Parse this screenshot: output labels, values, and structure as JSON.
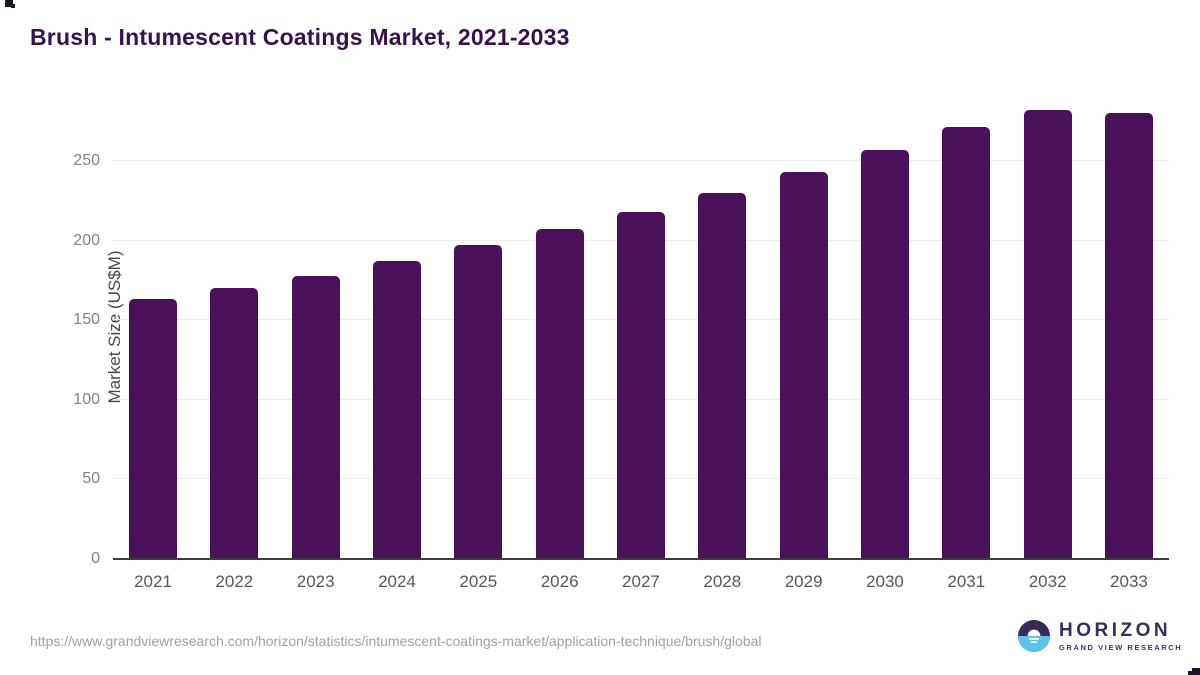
{
  "title": "Brush - Intumescent Coatings Market, 2021-2033",
  "chart_data": {
    "type": "bar",
    "categories": [
      "2021",
      "2022",
      "2023",
      "2024",
      "2025",
      "2026",
      "2027",
      "2028",
      "2029",
      "2030",
      "2031",
      "2032",
      "2033"
    ],
    "values": [
      163,
      170,
      178,
      187,
      197,
      207,
      218,
      230,
      243,
      257,
      271,
      282,
      280
    ],
    "title": "Brush - Intumescent Coatings Market, 2021-2033",
    "xlabel": "",
    "ylabel": "Market Size (US$M)",
    "ylim": [
      0,
      292
    ],
    "yticks": [
      0,
      50,
      100,
      150,
      200,
      250
    ],
    "grid": "horizontal",
    "legend": "none",
    "bar_color": "#4a115a"
  },
  "colors": {
    "title": "#3a1150",
    "bar": "#4a115a",
    "axis_line": "#3d3d3d",
    "gridline": "#ececec",
    "y_tick_label": "#828282",
    "x_tick_label": "#58585a",
    "url_text": "#a0a0a0",
    "logo_dark": "#362b59",
    "logo_blue": "#5bc2ea"
  },
  "footer": {
    "source_url": "https://www.grandviewresearch.com/horizon/statistics/intumescent-coatings-market/application-technique/brush/global",
    "logo": {
      "name": "HORIZON",
      "tagline": "GRAND VIEW RESEARCH"
    }
  }
}
